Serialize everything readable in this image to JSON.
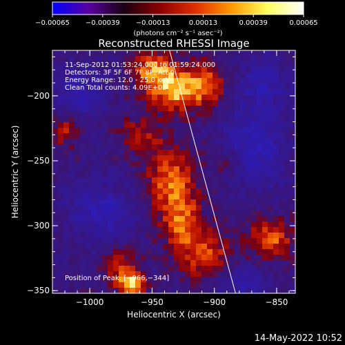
{
  "chart_data": {
    "type": "heatmap",
    "title": "Reconstructed RHESSI Image",
    "xlabel": "Heliocentric X (arcsec)",
    "ylabel": "Heliocentric Y (arcsec)",
    "xlim": [
      -1030,
      -835
    ],
    "ylim": [
      -352,
      -165
    ],
    "x_ticks": [
      {
        "value": -1000,
        "label": "−1000"
      },
      {
        "value": -950,
        "label": "−950"
      },
      {
        "value": -900,
        "label": "−900"
      },
      {
        "value": -850,
        "label": "−850"
      }
    ],
    "y_ticks": [
      {
        "value": -200,
        "label": "−200"
      },
      {
        "value": -250,
        "label": "−250"
      },
      {
        "value": -300,
        "label": "−300"
      },
      {
        "value": -350,
        "label": "−350"
      }
    ],
    "colorbar": {
      "range": [
        -0.00065,
        0.00065
      ],
      "ticks": [
        {
          "value": -0.00065,
          "label": "−0.00065"
        },
        {
          "value": -0.00039,
          "label": "−0.00039"
        },
        {
          "value": -0.00013,
          "label": "−0.00013"
        },
        {
          "value": 0.00013,
          "label": "0.00013"
        },
        {
          "value": 0.00039,
          "label": "0.00039"
        },
        {
          "value": 0.00065,
          "label": "0.00065"
        }
      ],
      "unit_label": "(photons cm⁻² s⁻¹ asec⁻²)",
      "colors": [
        "#0000ff",
        "#5a00a0",
        "#1a0010",
        "#8c0000",
        "#e03000",
        "#ff9a00",
        "#ffff60",
        "#ffffff"
      ]
    },
    "annotations": {
      "time": "11-Sep-2012 01:53:24.000 to 01:59:24.000",
      "detectors": "Detectors: 3F 5F 6F 7F 8F, Att 0",
      "energy": "Energy Range: 12.0 - 25.0 keV",
      "clean": "Clean    Total counts: 4.09E+03",
      "peak_label": "Position of Peak: [−966,−344]"
    },
    "peak": {
      "x": -966,
      "y": -344
    },
    "limb_line": {
      "x1": -936,
      "y1": -165,
      "x2": -883,
      "y2": -352
    },
    "sources": [
      {
        "x": -930,
        "y": -195,
        "intensity": 1.0,
        "sx": 16,
        "sy": 12
      },
      {
        "x": -950,
        "y": -180,
        "intensity": 0.7,
        "sx": 12,
        "sy": 10
      },
      {
        "x": -905,
        "y": -190,
        "intensity": 0.55,
        "sx": 10,
        "sy": 12
      },
      {
        "x": -935,
        "y": -265,
        "intensity": 0.75,
        "sx": 14,
        "sy": 18
      },
      {
        "x": -925,
        "y": -300,
        "intensity": 0.7,
        "sx": 12,
        "sy": 16
      },
      {
        "x": -905,
        "y": -325,
        "intensity": 0.6,
        "sx": 14,
        "sy": 14
      },
      {
        "x": -855,
        "y": -310,
        "intensity": 0.8,
        "sx": 12,
        "sy": 10
      },
      {
        "x": -975,
        "y": -330,
        "intensity": 0.55,
        "sx": 10,
        "sy": 10
      },
      {
        "x": -966,
        "y": -344,
        "intensity": 1.0,
        "sx": 8,
        "sy": 6
      },
      {
        "x": -1020,
        "y": -225,
        "intensity": 0.55,
        "sx": 8,
        "sy": 10
      },
      {
        "x": -960,
        "y": -230,
        "intensity": 0.45,
        "sx": 14,
        "sy": 10
      },
      {
        "x": -890,
        "y": -250,
        "intensity": 0.35,
        "sx": 10,
        "sy": 12
      },
      {
        "x": -990,
        "y": -290,
        "intensity": -0.55,
        "sx": 18,
        "sy": 16
      },
      {
        "x": -1010,
        "y": -200,
        "intensity": -0.5,
        "sx": 14,
        "sy": 14
      },
      {
        "x": -870,
        "y": -240,
        "intensity": -0.6,
        "sx": 18,
        "sy": 22
      },
      {
        "x": -860,
        "y": -190,
        "intensity": -0.45,
        "sx": 14,
        "sy": 14
      },
      {
        "x": -880,
        "y": -345,
        "intensity": -0.45,
        "sx": 16,
        "sy": 10
      }
    ]
  },
  "footer": {
    "timestamp": "14-May-2022 10:52"
  },
  "colors": {
    "background": "#000000",
    "axes": "#ffffff",
    "limb": "#ffffff"
  }
}
